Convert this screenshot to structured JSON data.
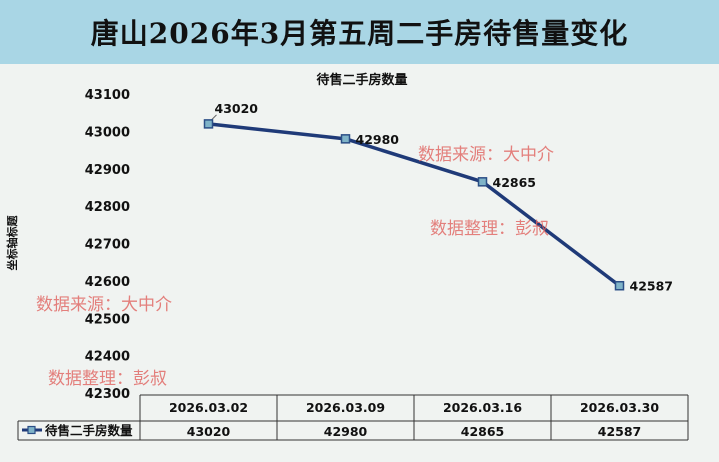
{
  "header": {
    "title": "唐山2026年3月第五周二手房待售量变化"
  },
  "chart_data": {
    "type": "line",
    "title": "待售二手房数量",
    "xlabel": "",
    "ylabel": "坐标轴标题",
    "categories": [
      "2026.03.02",
      "2026.03.09",
      "2026.03.16",
      "2026.03.30"
    ],
    "series": [
      {
        "name": "待售二手房数量",
        "values": [
          43020,
          42980,
          42865,
          42587
        ]
      }
    ],
    "ylim": [
      42300,
      43100
    ],
    "yticks": [
      42300,
      42400,
      42500,
      42600,
      42700,
      42800,
      42900,
      43000,
      43100
    ],
    "grid": false,
    "legend": "data-table-bottom",
    "data_table": true,
    "colors": {
      "line": "#1f3a78",
      "marker_fill": "#7fb3c8",
      "marker_stroke": "#2b4e86"
    }
  },
  "watermarks": [
    {
      "line1": "数据来源：大中介",
      "line2": "数据整理：彭叔"
    },
    {
      "line1": "数据来源：大中介",
      "line2": "数据整理：彭叔"
    }
  ]
}
